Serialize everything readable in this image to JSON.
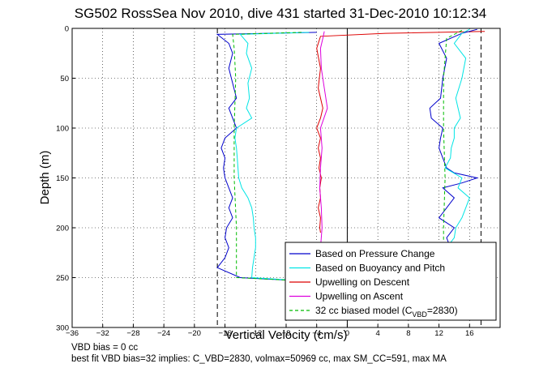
{
  "chart_data": {
    "type": "line",
    "title": "SG502 RossSea Nov 2010, dive 431 started 31-Dec-2010 10:12:34",
    "xlabel": "Vertical Velocity (cm/s)",
    "ylabel": "Depth (m)",
    "xlim": [
      -36,
      20
    ],
    "ylim": [
      300,
      0
    ],
    "grid": true,
    "xticks": [
      -36,
      -32,
      -28,
      -24,
      -20,
      -16,
      -12,
      -8,
      -4,
      0,
      4,
      8,
      12,
      16
    ],
    "yticks": [
      0,
      50,
      100,
      150,
      200,
      250,
      300
    ],
    "legend_position": "bottom-right",
    "series": [
      {
        "name": "Based on Pressure Change",
        "color": "#0000cc",
        "style": "solid",
        "y": [
          4,
          6,
          15,
          25,
          40,
          55,
          70,
          80,
          90,
          100,
          110,
          120,
          130,
          140,
          150,
          160,
          170,
          180,
          190,
          200,
          210,
          220,
          230,
          240,
          250,
          254
        ],
        "x": [
          -4,
          -17,
          -15.5,
          -15,
          -15.5,
          -15,
          -14.5,
          -15.5,
          -15,
          -14.5,
          -16,
          -16.5,
          -16,
          -16.2,
          -16,
          -15.5,
          -15,
          -15.5,
          -15,
          -15.8,
          -16,
          -15.5,
          -16,
          -17,
          -14,
          -4
        ]
      },
      {
        "name": "Based on Buoyancy and Pitch",
        "color": "#00e5e5",
        "style": "solid",
        "y": [
          4,
          6,
          15,
          25,
          40,
          55,
          70,
          80,
          90,
          100,
          110,
          120,
          130,
          140,
          150,
          160,
          170,
          180,
          190,
          200,
          210,
          220,
          230,
          240,
          250,
          254
        ],
        "x": [
          -5,
          -14,
          -13,
          -13.2,
          -12.5,
          -13,
          -12.8,
          -13.2,
          -12.5,
          -14.5,
          -14.7,
          -14.5,
          -14.4,
          -14.3,
          -14.2,
          -13.8,
          -13,
          -12.5,
          -12.3,
          -12.2,
          -12,
          -12,
          -12.2,
          -12.4,
          -12.5,
          -4
        ]
      },
      {
        "name": "Upwelling on Descent",
        "color": "#dd0000",
        "style": "solid",
        "y": [
          3,
          5,
          8,
          20,
          40,
          60,
          80,
          90,
          100,
          110,
          120,
          130,
          140,
          150,
          160,
          170,
          180,
          190,
          200,
          205
        ],
        "x": [
          18,
          5,
          -3.5,
          -4,
          -3.5,
          -3.8,
          -3.2,
          -3.5,
          -4,
          -3.5,
          -3.8,
          -3.5,
          -3.7,
          -3.4,
          -3.6,
          -3.5,
          -3.8,
          -3.5,
          -3.6,
          -3.5
        ]
      },
      {
        "name": "Upwelling on Ascent",
        "color": "#dd00dd",
        "style": "solid",
        "y": [
          3,
          10,
          20,
          40,
          60,
          80,
          100,
          120,
          140,
          160,
          180,
          200,
          220,
          240,
          250
        ],
        "x": [
          -3,
          -3.2,
          -3.5,
          -3.4,
          -3,
          -2.6,
          -3.5,
          -3.3,
          -3.5,
          -3.6,
          -3.4,
          -3.3,
          -3.5,
          -3.2,
          -3.3
        ]
      },
      {
        "name": "32 cc biased model (C_VBD=2830)",
        "color": "#00bb00",
        "style": "dashed",
        "y": [
          4,
          6,
          20,
          50,
          100,
          150,
          200,
          250,
          254
        ],
        "x": [
          -6,
          -15,
          -14.8,
          -14.6,
          -14.8,
          -14.8,
          -14.5,
          -14.5,
          -4
        ]
      },
      {
        "name": "",
        "color": "#0000cc",
        "style": "solid",
        "y": [
          1,
          5,
          15,
          30,
          50,
          70,
          80,
          90,
          100,
          110,
          120,
          130,
          140,
          145,
          150,
          155,
          160,
          170,
          180,
          190,
          200,
          210,
          220,
          225
        ],
        "x": [
          17,
          15,
          12,
          13,
          12.5,
          12.2,
          10.8,
          11,
          12.5,
          12.2,
          12,
          12.5,
          13,
          14,
          17,
          15,
          12.5,
          14,
          13,
          12,
          14,
          13,
          13.5,
          13
        ]
      },
      {
        "name": "",
        "color": "#00e5e5",
        "style": "solid",
        "y": [
          1,
          5,
          15,
          30,
          50,
          70,
          80,
          90,
          100,
          110,
          120,
          130,
          140,
          150,
          160,
          170,
          180,
          190,
          200,
          210,
          220,
          225
        ],
        "x": [
          16,
          15,
          14,
          15.5,
          15,
          14.2,
          14.5,
          14.8,
          14,
          14,
          13.6,
          13.5,
          12.8,
          15,
          14.5,
          16,
          15.5,
          15,
          14.2,
          14,
          13,
          13
        ]
      },
      {
        "name": "",
        "color": "#00bb00",
        "style": "dashed",
        "y": [
          2,
          10,
          50,
          100,
          150,
          200,
          225
        ],
        "x": [
          15,
          13,
          12.6,
          12.6,
          12.8,
          12.6,
          12.6
        ]
      }
    ],
    "reference_lines": [
      {
        "type": "vertical",
        "x": -17,
        "style": "dashed",
        "color": "#000000"
      },
      {
        "type": "vertical",
        "x": 17.5,
        "style": "dashed",
        "color": "#000000"
      },
      {
        "type": "vertical",
        "x": 0,
        "style": "solid",
        "color": "#000000"
      }
    ]
  },
  "legend": {
    "items": [
      {
        "label": "Based on Pressure Change",
        "color": "#0000cc",
        "dash": ""
      },
      {
        "label": "Based on Buoyancy and Pitch",
        "color": "#00e5e5",
        "dash": ""
      },
      {
        "label": "Upwelling on Descent",
        "color": "#dd0000",
        "dash": ""
      },
      {
        "label": "Upwelling on Ascent",
        "color": "#dd00dd",
        "dash": ""
      },
      {
        "label": "32 cc biased model (C",
        "color": "#00bb00",
        "dash": "4,3"
      }
    ],
    "model_sub": "VBD",
    "model_tail": "=2830)"
  },
  "notes": {
    "line1": "VBD bias = 0 cc",
    "line2": "best fit VBD bias=32 implies: C_VBD=2830, volmax=50969 cc, max SM_CC=591, max MA"
  }
}
